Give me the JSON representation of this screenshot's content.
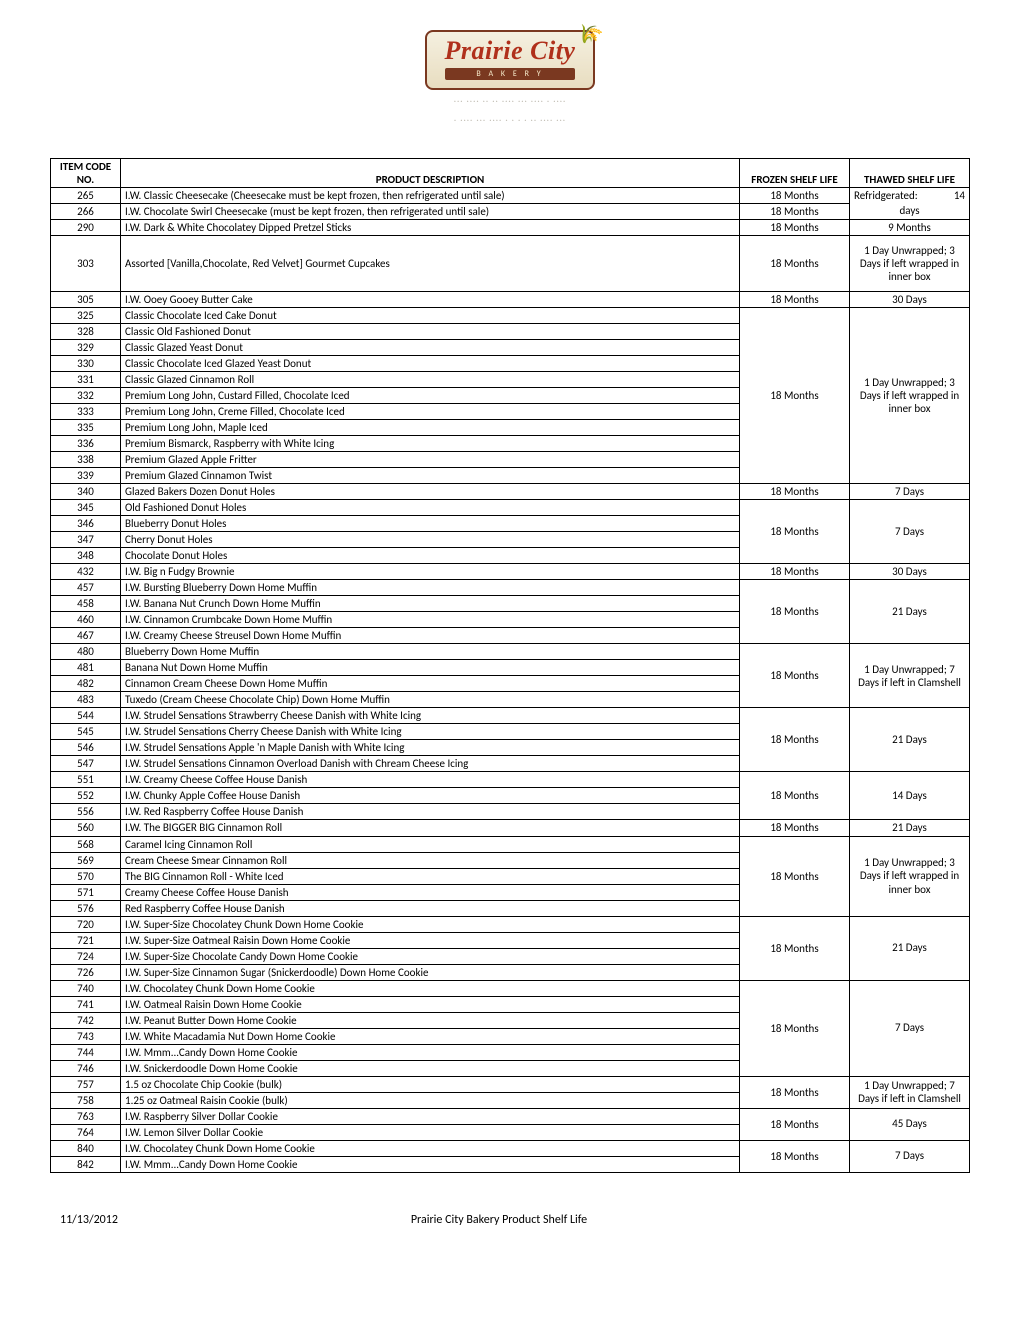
{
  "logo": {
    "name": "Prairie City",
    "sub": "B A K E R Y",
    "tagline1": "··· ···· ·· ·· ···· ··· ···· · ····",
    "tagline2": "· ···· ··· ···· · · · · ·· ···· ···"
  },
  "headers": {
    "code_line1": "ITEM CODE",
    "code_line2": "NO.",
    "desc": "PRODUCT DESCRIPTION",
    "frozen": "FROZEN SHELF LIFE",
    "thawed": "THAWED SHELF LIFE"
  },
  "groups": [
    {
      "frozen": "18 Months",
      "thawed": "",
      "thawed_split": [
        "Refridgerated:",
        "14"
      ],
      "thawed_class": "no-bottom",
      "rows": [
        {
          "code": "265",
          "desc": "I.W. Classic Cheesecake (Cheesecake must be kept frozen, then refrigerated until sale)"
        }
      ]
    },
    {
      "frozen": "18 Months",
      "thawed": "days",
      "thawed_class": "no-top",
      "rows": [
        {
          "code": "266",
          "desc": "I.W. Chocolate Swirl Cheesecake (must be kept frozen, then refrigerated until sale)"
        }
      ]
    },
    {
      "frozen": "18 Months",
      "thawed": "9 Months",
      "rows": [
        {
          "code": "290",
          "desc": "I.W. Dark & White Chocolatey Dipped Pretzel Sticks"
        }
      ]
    },
    {
      "frozen": "18 Months",
      "thawed": "1 Day Unwrapped; 3 Days if left wrapped in inner box",
      "tall": true,
      "rows": [
        {
          "code": "303",
          "desc": "Assorted [Vanilla,Chocolate, Red Velvet] Gourmet Cupcakes"
        }
      ]
    },
    {
      "frozen": "18 Months",
      "thawed": "30 Days",
      "rows": [
        {
          "code": "305",
          "desc": "I.W. Ooey Gooey Butter Cake"
        }
      ]
    },
    {
      "frozen": "18 Months",
      "thawed": "1 Day Unwrapped; 3 Days if left wrapped in inner box",
      "rows": [
        {
          "code": "325",
          "desc": "Classic Chocolate Iced Cake Donut"
        },
        {
          "code": "328",
          "desc": "Classic Old Fashioned Donut"
        },
        {
          "code": "329",
          "desc": "Classic Glazed Yeast Donut"
        },
        {
          "code": "330",
          "desc": "Classic Chocolate Iced Glazed Yeast Donut"
        },
        {
          "code": "331",
          "desc": "Classic Glazed Cinnamon Roll"
        },
        {
          "code": "332",
          "desc": "Premium Long John, Custard Filled, Chocolate Iced"
        },
        {
          "code": "333",
          "desc": "Premium Long John, Creme Filled, Chocolate Iced"
        },
        {
          "code": "335",
          "desc": "Premium Long John, Maple Iced"
        },
        {
          "code": "336",
          "desc": "Premium Bismarck, Raspberry with White Icing"
        },
        {
          "code": "338",
          "desc": "Premium Glazed Apple Fritter"
        },
        {
          "code": "339",
          "desc": "Premium Glazed Cinnamon Twist"
        }
      ]
    },
    {
      "frozen": "18 Months",
      "thawed": "7 Days",
      "rows": [
        {
          "code": "340",
          "desc": "Glazed Bakers Dozen Donut Holes"
        }
      ]
    },
    {
      "frozen": "18 Months",
      "thawed": "7 Days",
      "rows": [
        {
          "code": "345",
          "desc": "Old Fashioned Donut Holes"
        },
        {
          "code": "346",
          "desc": "Blueberry Donut Holes"
        },
        {
          "code": "347",
          "desc": "Cherry Donut Holes"
        },
        {
          "code": "348",
          "desc": "Chocolate Donut Holes"
        }
      ]
    },
    {
      "frozen": "18 Months",
      "thawed": "30 Days",
      "rows": [
        {
          "code": "432",
          "desc": "I.W. Big n Fudgy Brownie"
        }
      ]
    },
    {
      "frozen": "18 Months",
      "thawed": "21 Days",
      "rows": [
        {
          "code": "457",
          "desc": "I.W. Bursting Blueberry Down Home Muffin"
        },
        {
          "code": "458",
          "desc": "I.W. Banana Nut Crunch Down Home Muffin"
        },
        {
          "code": "460",
          "desc": "I.W. Cinnamon Crumbcake Down Home Muffin"
        },
        {
          "code": "467",
          "desc": "I.W. Creamy Cheese Streusel Down Home Muffin"
        }
      ]
    },
    {
      "frozen": "18 Months",
      "thawed": "1 Day Unwrapped; 7 Days if left in Clamshell",
      "rows": [
        {
          "code": "480",
          "desc": "Blueberry Down Home Muffin"
        },
        {
          "code": "481",
          "desc": "Banana Nut Down Home Muffin"
        },
        {
          "code": "482",
          "desc": "Cinnamon Cream Cheese Down Home Muffin"
        },
        {
          "code": "483",
          "desc": "Tuxedo (Cream Cheese Chocolate Chip) Down Home Muffin"
        }
      ]
    },
    {
      "frozen": "18 Months",
      "thawed": "21 Days",
      "rows": [
        {
          "code": "544",
          "desc": "I.W. Strudel Sensations Strawberry Cheese Danish with White Icing"
        },
        {
          "code": "545",
          "desc": "I.W. Strudel Sensations Cherry Cheese Danish with White Icing"
        },
        {
          "code": "546",
          "desc": "I.W. Strudel Sensations Apple 'n Maple Danish with White Icing"
        },
        {
          "code": "547",
          "desc": "I.W. Strudel Sensations Cinnamon Overload Danish with Chream Cheese Icing"
        }
      ]
    },
    {
      "frozen": "18 Months",
      "thawed": "14 Days",
      "rows": [
        {
          "code": "551",
          "desc": "I.W. Creamy Cheese Coffee House Danish"
        },
        {
          "code": "552",
          "desc": "I.W. Chunky Apple Coffee House Danish"
        },
        {
          "code": "556",
          "desc": "I.W. Red Raspberry Coffee House Danish"
        }
      ]
    },
    {
      "frozen": "18 Months",
      "thawed": "21 Days",
      "rows": [
        {
          "code": "560",
          "desc": "I.W. The BIGGER BIG Cinnamon Roll"
        }
      ]
    },
    {
      "frozen": "18 Months",
      "thawed": "1 Day Unwrapped;   3 Days if left wrapped in inner box",
      "rows": [
        {
          "code": "568",
          "desc": "Caramel Icing Cinnamon Roll"
        },
        {
          "code": "569",
          "desc": "Cream Cheese Smear Cinnamon Roll"
        },
        {
          "code": "570",
          "desc": "The BIG Cinnamon Roll - White Iced"
        },
        {
          "code": "571",
          "desc": "Creamy Cheese Coffee House Danish"
        },
        {
          "code": "576",
          "desc": "Red Raspberry Coffee House Danish"
        }
      ]
    },
    {
      "frozen": "18 Months",
      "thawed": "21 Days",
      "rows": [
        {
          "code": "720",
          "desc": "I.W. Super-Size Chocolatey Chunk Down Home Cookie"
        },
        {
          "code": "721",
          "desc": "I.W. Super-Size Oatmeal Raisin Down Home Cookie"
        },
        {
          "code": "724",
          "desc": "I.W. Super-Size Chocolate Candy Down Home Cookie"
        },
        {
          "code": "726",
          "desc": "I.W. Super-Size Cinnamon Sugar (Snickerdoodle) Down Home Cookie"
        }
      ]
    },
    {
      "frozen": "18 Months",
      "thawed": "7 Days",
      "rows": [
        {
          "code": "740",
          "desc": "I.W. Chocolatey Chunk Down Home Cookie"
        },
        {
          "code": "741",
          "desc": "I.W. Oatmeal Raisin Down Home Cookie"
        },
        {
          "code": "742",
          "desc": "I.W. Peanut Butter Down Home Cookie"
        },
        {
          "code": "743",
          "desc": "I.W. White Macadamia Nut Down Home Cookie"
        },
        {
          "code": "744",
          "desc": "I.W. Mmm...Candy Down Home Cookie"
        },
        {
          "code": "746",
          "desc": "I.W. Snickerdoodle Down Home Cookie"
        }
      ]
    },
    {
      "frozen": "18 Months",
      "thawed": "1 Day Unwrapped; 7 Days if left in Clamshell",
      "rows": [
        {
          "code": "757",
          "desc": "1.5 oz Chocolate Chip Cookie (bulk)"
        },
        {
          "code": "758",
          "desc": "1.25 oz Oatmeal Raisin Cookie (bulk)"
        }
      ]
    },
    {
      "frozen": "18 Months",
      "thawed": "45 Days",
      "rows": [
        {
          "code": "763",
          "desc": "I.W. Raspberry Silver Dollar Cookie"
        },
        {
          "code": "764",
          "desc": "I.W. Lemon Silver Dollar Cookie"
        }
      ]
    },
    {
      "frozen": "18 Months",
      "thawed": "7 Days",
      "rows": [
        {
          "code": "840",
          "desc": "I.W. Chocolatey Chunk Down Home Cookie"
        },
        {
          "code": "842",
          "desc": "I.W. Mmm...Candy Down Home Cookie"
        }
      ]
    }
  ],
  "footer": {
    "date": "11/13/2012",
    "title": "Prairie City Bakery Product Shelf Life"
  }
}
